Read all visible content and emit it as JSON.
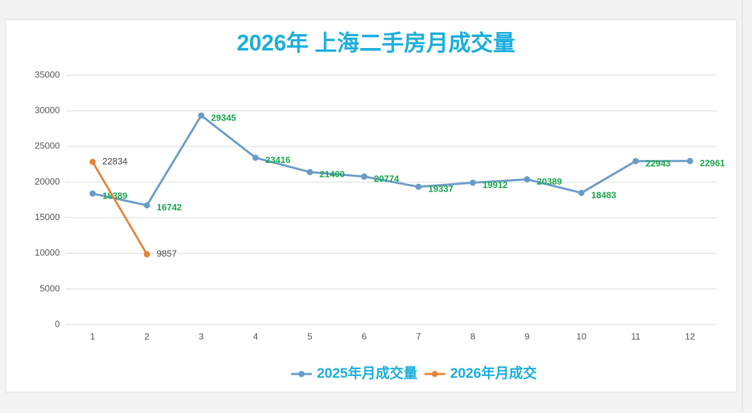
{
  "chart_data": {
    "type": "line",
    "title": "2026年 上海二手房月成交量",
    "categories": [
      "1",
      "2",
      "3",
      "4",
      "5",
      "6",
      "7",
      "8",
      "9",
      "10",
      "11",
      "12"
    ],
    "series": [
      {
        "name": "2025年月成交量",
        "color": "#6a9bc8",
        "label_color": "#1aa64b",
        "values": [
          18389,
          16742,
          29345,
          23416,
          21400,
          20774,
          19337,
          19912,
          20389,
          18483,
          22943,
          22961
        ]
      },
      {
        "name": "2026年月成交",
        "color": "#e5843a",
        "label_color": "#444444",
        "values": [
          22834,
          9857,
          null,
          null,
          null,
          null,
          null,
          null,
          null,
          null,
          null,
          null
        ]
      }
    ],
    "ylim": [
      0,
      35000
    ],
    "yticks": [
      0,
      5000,
      10000,
      15000,
      20000,
      25000,
      30000,
      35000
    ],
    "grid": true,
    "legend": "bottom"
  }
}
